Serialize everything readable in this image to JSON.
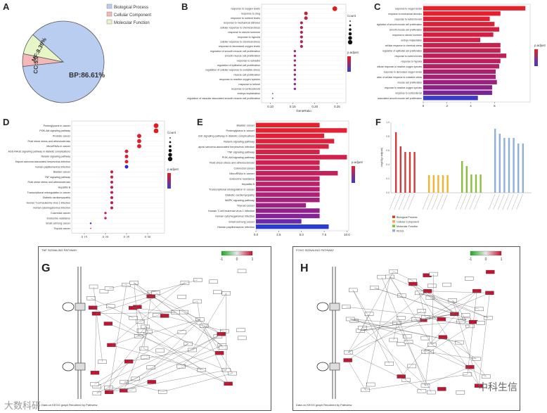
{
  "panels": {
    "A": "A",
    "B": "B",
    "C": "C",
    "D": "D",
    "E": "E",
    "F": "F",
    "G": "G",
    "H": "H"
  },
  "chart_data": [
    {
      "id": "A",
      "type": "pie",
      "legend": [
        "Biological Process",
        "Cellular Component",
        "Molecular Function"
      ],
      "colors": [
        "#b9cdf1",
        "#f4b8b8",
        "#e6f6c6"
      ],
      "slices": [
        {
          "name": "BP",
          "value": 86.61,
          "label": "BP:86.61%"
        },
        {
          "name": "CC",
          "value": 5.0,
          "label": "CC:5.00%"
        },
        {
          "name": "MF",
          "value": 8.39,
          "label": "MF:8.39%"
        }
      ]
    },
    {
      "id": "B",
      "type": "scatter",
      "xlabel": "GeneRatio",
      "xticks": [
        "0.10",
        "0.15",
        "0.20",
        "0.25"
      ],
      "xlim": [
        0.08,
        0.27
      ],
      "legend_count_title": "Count",
      "legend_padj_title": "p.adjust",
      "terms": [
        "response to oxygen levels",
        "response to drug",
        "response to nutrient levels",
        "response to mechanical stimulus",
        "cellular response to chemical stress",
        "response to steroid hormone",
        "response to hypoxia",
        "cellular response to chemical stress",
        "response to decreased oxygen levels",
        "regulation of smooth muscle cell proliferation",
        "smooth muscle cell proliferation",
        "response to estradiol",
        "regulation of epithelial cell proliferation",
        "regulation of cellular response to oxidative stress",
        "muscle cell proliferation",
        "response to reactive oxygen species",
        "response to ketone",
        "response to corticosteroid",
        "embryo implantation",
        "regulation of vascular associated smooth muscle cell proliferation"
      ],
      "x": [
        0.245,
        0.18,
        0.18,
        0.17,
        0.17,
        0.17,
        0.17,
        0.17,
        0.17,
        0.155,
        0.155,
        0.155,
        0.155,
        0.155,
        0.155,
        0.155,
        0.155,
        0.155,
        0.105,
        0.105
      ],
      "sizes": [
        8,
        6,
        6,
        5,
        5,
        5,
        5,
        5,
        5,
        4,
        4,
        4,
        4,
        4,
        4,
        4,
        4,
        4,
        2,
        2
      ],
      "colors": [
        "#e41a1c",
        "#c42337",
        "#c42337",
        "#b0245a",
        "#b0245a",
        "#b0245a",
        "#b0245a",
        "#b0245a",
        "#b0245a",
        "#9a2a7a",
        "#9a2a7a",
        "#9a2a7a",
        "#9a2a7a",
        "#9a2a7a",
        "#8a2d8f",
        "#8a2d8f",
        "#8a2d8f",
        "#8a2d8f",
        "#4a3abf",
        "#3a3ad0"
      ]
    },
    {
      "id": "C",
      "type": "bar",
      "orientation": "horizontal",
      "xticks": [
        "0",
        "2",
        "4",
        "6"
      ],
      "xlim": [
        0,
        9
      ],
      "legend_padj_title": "p.adjust",
      "terms": [
        "response to oxygen levels",
        "response to mechanical stimulus",
        "response to nutrient levels",
        "regulation of smooth muscle cell proliferation",
        "smooth muscle cell proliferation",
        "response to steroid hormone",
        "embryo implantation",
        "cellular response to chemical stress",
        "regulation of epithelial cell proliferation",
        "response to nutrient levels",
        "response to hypoxia",
        "cellular response to reactive oxygen species",
        "response to decreased oxygen levels",
        "regulation of cellular response to oxidative stress",
        "muscle cell proliferation",
        "response to reactive oxygen species",
        "response to corticosteroid",
        "regulation of vascular associated smooth muscle cell proliferation"
      ],
      "values": [
        8.6,
        6.5,
        5.6,
        6.0,
        6.4,
        5.9,
        4.8,
        6.5,
        6.5,
        7.0,
        6.5,
        6.4,
        6.1,
        6.1,
        6.2,
        5.8,
        5.8,
        4.6
      ],
      "colors": [
        "#e8202a",
        "#e4202e",
        "#df2033",
        "#db2038",
        "#d7203d",
        "#d32042",
        "#cf2047",
        "#c8204c",
        "#c42052",
        "#c02058",
        "#bb205e",
        "#b32065",
        "#ab206d",
        "#a32075",
        "#9a207d",
        "#8d2087",
        "#7a2494",
        "#3c3ac9"
      ]
    },
    {
      "id": "D",
      "type": "scatter",
      "xlabel": "GeneRatio",
      "xticks": [
        "0.15",
        "0.20",
        "0.25",
        "0.30"
      ],
      "xlim": [
        0.12,
        0.34
      ],
      "legend_count_title": "Count",
      "legend_padj_title": "p.adjust",
      "terms": [
        "Proteoglycans in cancer",
        "PI3K-Akt signaling pathway",
        "Prostate cancer",
        "Fluid shear stress and atherosclerosis",
        "MicroRNAs in cancer",
        "AGE-RAGE signaling pathway in diabetic complications",
        "Relaxin signaling pathway",
        "Kaposi sarcoma-associated herpesvirus infection",
        "Human papillomavirus infection",
        "Bladder cancer",
        "TNF signaling pathway",
        "Fluid shear stress and atherosclerosis",
        "Hepatitis B",
        "Transcriptional misregulation in cancer",
        "Diabetic cardiomyopathy",
        "Human T-cell leukemia virus 1 infection",
        "Human cytomegalovirus infection",
        "Colorectal cancer",
        "Endocrine resistance",
        "Small cell lung cancer",
        "Thyroid cancer"
      ],
      "x": [
        0.32,
        0.32,
        0.28,
        0.28,
        0.28,
        0.25,
        0.25,
        0.25,
        0.25,
        0.215,
        0.215,
        0.215,
        0.215,
        0.215,
        0.215,
        0.215,
        0.215,
        0.2,
        0.2,
        0.165,
        0.165
      ],
      "sizes": [
        8,
        8,
        7,
        7,
        7,
        6,
        6,
        6,
        6,
        5,
        5,
        5,
        5,
        5,
        5,
        5,
        5,
        4,
        4,
        3,
        2
      ],
      "colors": [
        "#e41a1c",
        "#e41a1c",
        "#df1f2c",
        "#df1f2c",
        "#df1f2c",
        "#d91f36",
        "#d91f36",
        "#d91f36",
        "#2b2bd6",
        "#c92046",
        "#c92046",
        "#c92046",
        "#c02052",
        "#c02052",
        "#c02052",
        "#b8205c",
        "#b8205c",
        "#c02052",
        "#c02052",
        "#3a3ad0",
        "#d83060"
      ]
    },
    {
      "id": "E",
      "type": "bar",
      "orientation": "horizontal",
      "xticks": [
        "0.0",
        "2.5",
        "5.0",
        "7.5",
        "10.0"
      ],
      "xlim": [
        0,
        10.2
      ],
      "legend_padj_title": "p.adjust",
      "terms": [
        "Bladder cancer",
        "Proteoglycans in cancer",
        "AGE-RAGE signaling pathway in diabetic complications",
        "Relaxin signaling pathway",
        "Kaposi sarcoma-associated herpesvirus infection",
        "TNF signaling pathway",
        "PI3K-Akt signaling pathway",
        "Fluid shear stress and atherosclerosis",
        "Colorectal cancer",
        "MicroRNAs in cancer",
        "Endocrine resistance",
        "Hepatitis B",
        "Transcriptional misregulation in cancer",
        "Diabetic cardiomyopathy",
        "MAPK signaling pathway",
        "Thyroid cancer",
        "Human T-cell leukemia virus 1 infection",
        "Human cytomegalovirus infection",
        "Small cell lung cancer",
        "Human papillomavirus infection"
      ],
      "values": [
        7.0,
        10.0,
        7.5,
        8.6,
        8.0,
        7.0,
        10.0,
        7.0,
        7.0,
        9.0,
        7.0,
        7.0,
        7.0,
        7.0,
        7.0,
        5.5,
        7.0,
        7.0,
        5.0,
        8.0
      ],
      "colors": [
        "#e8202a",
        "#e52030",
        "#e22035",
        "#de203a",
        "#db2040",
        "#d72046",
        "#d3204b",
        "#cf2050",
        "#ca2056",
        "#c6205c",
        "#c12062",
        "#bb2068",
        "#b5206e",
        "#ae2075",
        "#a6207c",
        "#9d2084",
        "#92208c",
        "#842394",
        "#6a2aa5",
        "#2c3bd6"
      ]
    },
    {
      "id": "F",
      "type": "bar",
      "ylabel": "-log10(p.adjust)",
      "legend": [
        "Biological Process",
        "Cellular Component",
        "Molecular Function",
        "KEGG"
      ],
      "legend_colors": [
        "#d23a3a",
        "#f0b431",
        "#8bbe3c",
        "#8fb0d8"
      ],
      "groups": [
        {
          "name": "Biological Process",
          "values": [
            0.86,
            0.66,
            0.58,
            0.58,
            0.58
          ],
          "color": "#d23a3a"
        },
        {
          "name": "Cellular Component",
          "values": [
            0.25,
            0.25,
            0.25,
            0.25,
            0.25
          ],
          "color": "#f0b431"
        },
        {
          "name": "Molecular Function",
          "values": [
            0.45,
            0.38,
            0.26,
            0.26,
            0.26
          ],
          "color": "#8bbe3c"
        },
        {
          "name": "KEGG",
          "values": [
            0.91,
            0.84,
            0.78,
            0.78,
            0.78,
            0.7,
            0.7
          ],
          "color": "#8fb0d8"
        }
      ]
    }
  ],
  "panel_G": {
    "title": "TNF SIGNALING PATHWAY",
    "footer": "Data on KEGG graph\nRendered by Pathview",
    "scale_labels": [
      "-1",
      "0",
      "1"
    ]
  },
  "panel_H": {
    "title": "FOXO SIGNALING PATHWAY",
    "footer": "Data on KEGG graph\nRendered by Pathview",
    "scale_labels": [
      "-1",
      "0",
      "1"
    ]
  },
  "watermark_left": "大数科研",
  "watermark_right": "中科生信"
}
